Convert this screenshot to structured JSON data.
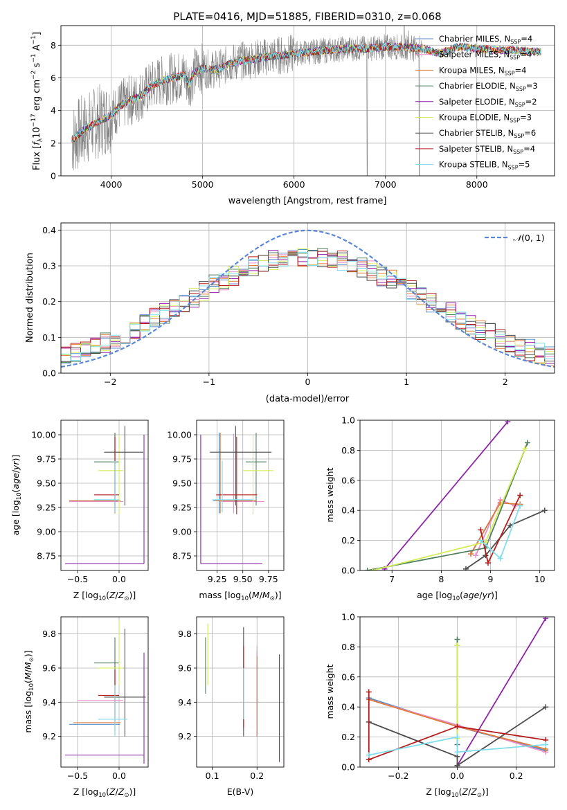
{
  "chart_data": [
    {
      "id": "spectrum",
      "type": "line",
      "title": "PLATE=0416, MJD=51885, FIBERID=0310, z=0.068",
      "xlabel": "wavelength [Angstrom, rest frame]",
      "ylabel": "Flux [f_λ 10^-17 erg cm^-2 s^-1 A^-1]",
      "xlim": [
        3450,
        8850
      ],
      "ylim": [
        0,
        9.2
      ],
      "xticks": [
        4000,
        5000,
        6000,
        7000,
        8000
      ],
      "yticks": [
        0,
        2,
        4,
        6,
        8
      ],
      "legend_position": "upper-right",
      "data_color": "#808080",
      "series": [
        {
          "name": "Chabrier MILES, N_SSP=4",
          "color": "#5b8fc9"
        },
        {
          "name": "Salpeter MILES, N_SSP=4",
          "color": "#e88fc8"
        },
        {
          "name": "Kroupa MILES, N_SSP=4",
          "color": "#e07b39"
        },
        {
          "name": "Chabrier ELODIE, N_SSP=3",
          "color": "#4f7f5f"
        },
        {
          "name": "Salpeter ELODIE, N_SSP=2",
          "color": "#8e24aa"
        },
        {
          "name": "Kroupa ELODIE, N_SSP=3",
          "color": "#d4ee5a"
        },
        {
          "name": "Chabrier STELIB, N_SSP=6",
          "color": "#4d4d4d"
        },
        {
          "name": "Salpeter STELIB, N_SSP=4",
          "color": "#b71c1c"
        },
        {
          "name": "Kroupa STELIB, N_SSP=5",
          "color": "#80deea"
        }
      ],
      "continuum": [
        {
          "x": 3570,
          "y": 2.2
        },
        {
          "x": 3700,
          "y": 2.8
        },
        {
          "x": 3850,
          "y": 3.3
        },
        {
          "x": 4000,
          "y": 3.7
        },
        {
          "x": 4100,
          "y": 4.3
        },
        {
          "x": 4200,
          "y": 4.6
        },
        {
          "x": 4300,
          "y": 4.8
        },
        {
          "x": 4400,
          "y": 5.3
        },
        {
          "x": 4500,
          "y": 5.7
        },
        {
          "x": 4600,
          "y": 5.9
        },
        {
          "x": 4700,
          "y": 6.0
        },
        {
          "x": 4800,
          "y": 6.2
        },
        {
          "x": 4850,
          "y": 5.6
        },
        {
          "x": 4900,
          "y": 6.3
        },
        {
          "x": 5000,
          "y": 6.6
        },
        {
          "x": 5100,
          "y": 6.5
        },
        {
          "x": 5200,
          "y": 6.6
        },
        {
          "x": 5300,
          "y": 6.9
        },
        {
          "x": 5400,
          "y": 7.0
        },
        {
          "x": 5500,
          "y": 7.1
        },
        {
          "x": 5700,
          "y": 7.3
        },
        {
          "x": 5900,
          "y": 7.4
        },
        {
          "x": 6000,
          "y": 7.5
        },
        {
          "x": 6200,
          "y": 7.6
        },
        {
          "x": 6400,
          "y": 7.7
        },
        {
          "x": 6600,
          "y": 7.8
        },
        {
          "x": 6800,
          "y": 7.8
        },
        {
          "x": 7000,
          "y": 7.9
        },
        {
          "x": 7200,
          "y": 7.9
        },
        {
          "x": 7400,
          "y": 7.8
        },
        {
          "x": 7600,
          "y": 7.5
        },
        {
          "x": 7800,
          "y": 7.9
        },
        {
          "x": 8000,
          "y": 7.8
        },
        {
          "x": 8200,
          "y": 7.7
        },
        {
          "x": 8400,
          "y": 7.7
        },
        {
          "x": 8600,
          "y": 7.6
        }
      ]
    },
    {
      "id": "residuals",
      "type": "line",
      "xlabel": "(data-model)/error",
      "ylabel": "Normed distribution",
      "xlim": [
        -2.5,
        2.5
      ],
      "ylim": [
        0,
        0.42
      ],
      "xticks": [
        -2,
        -1,
        0,
        1,
        2
      ],
      "yticks": [
        0.0,
        0.1,
        0.2,
        0.3,
        0.4
      ],
      "legend": [
        {
          "name": "N(0,1)",
          "color": "#5b86d6",
          "style": "dashed"
        }
      ],
      "legend_position": "upper-right",
      "histogram_bin_width": 0.1
    },
    {
      "id": "age_vs_Z",
      "type": "scatter",
      "xlabel": "Z [log10(Z/Z☉)]",
      "ylabel": "age  [log10(age/yr)]",
      "xlim": [
        -0.7,
        0.35
      ],
      "ylim": [
        8.6,
        10.15
      ],
      "xticks": [
        -0.5,
        0.0
      ],
      "yticks": [
        8.75,
        9.0,
        9.25,
        9.5,
        9.75,
        10.0
      ],
      "points": [
        {
          "series": "Chabrier MILES",
          "x": -0.05,
          "y": 9.32,
          "xerr": [
            0.55,
            0.06
          ],
          "yerr": [
            0.13,
            0.7
          ]
        },
        {
          "series": "Salpeter MILES",
          "x": -0.05,
          "y": 9.31,
          "xerr": [
            0.55,
            0.1
          ],
          "yerr": [
            0.12,
            0.7
          ]
        },
        {
          "series": "Kroupa MILES",
          "x": -0.05,
          "y": 9.32,
          "xerr": [
            0.55,
            0.07
          ],
          "yerr": [
            0.13,
            0.7
          ]
        },
        {
          "series": "Chabrier ELODIE",
          "x": -0.05,
          "y": 9.72,
          "xerr": [
            0.25,
            0.05
          ],
          "yerr": [
            0.45,
            0.3
          ]
        },
        {
          "series": "Salpeter ELODIE",
          "x": 0.3,
          "y": 8.67,
          "xerr": [
            0.95,
            0.0
          ],
          "yerr": [
            0.0,
            1.33
          ]
        },
        {
          "series": "Kroupa ELODIE",
          "x": 0.0,
          "y": 9.63,
          "xerr": [
            0.25,
            0.05
          ],
          "yerr": [
            0.45,
            0.37
          ]
        },
        {
          "series": "Chabrier STELIB",
          "x": 0.07,
          "y": 9.82,
          "xerr": [
            0.25,
            0.22
          ],
          "yerr": [
            0.55,
            0.27
          ]
        },
        {
          "series": "Salpeter STELIB",
          "x": -0.05,
          "y": 9.38,
          "xerr": [
            0.25,
            0.05
          ],
          "yerr": [
            0.15,
            0.6
          ]
        },
        {
          "series": "Kroupa STELIB",
          "x": -0.05,
          "y": 9.33,
          "xerr": [
            0.25,
            0.05
          ],
          "yerr": [
            0.13,
            0.4
          ]
        }
      ]
    },
    {
      "id": "age_vs_mass",
      "type": "scatter",
      "xlabel": "mass [log10(M/M☉)]",
      "ylabel": "",
      "xlim": [
        9.05,
        9.9
      ],
      "ylim": [
        8.6,
        10.15
      ],
      "xticks": [
        9.25,
        9.5,
        9.75
      ],
      "yticks": [
        8.75,
        9.0,
        9.25,
        9.5,
        9.75,
        10.0
      ],
      "points": [
        {
          "series": "Chabrier MILES",
          "x": 9.27,
          "y": 9.32,
          "xerr": [
            0.06,
            0.35
          ],
          "yerr": [
            0.13,
            0.7
          ]
        },
        {
          "series": "Salpeter MILES",
          "x": 9.41,
          "y": 9.31,
          "xerr": [
            0.12,
            0.3
          ],
          "yerr": [
            0.12,
            0.7
          ]
        },
        {
          "series": "Kroupa MILES",
          "x": 9.28,
          "y": 9.32,
          "xerr": [
            0.05,
            0.35
          ],
          "yerr": [
            0.13,
            0.7
          ]
        },
        {
          "series": "Chabrier ELODIE",
          "x": 9.63,
          "y": 9.72,
          "xerr": [
            0.1,
            0.1
          ],
          "yerr": [
            0.45,
            0.3
          ]
        },
        {
          "series": "Salpeter ELODIE",
          "x": 9.09,
          "y": 8.67,
          "xerr": [
            0.0,
            0.6
          ],
          "yerr": [
            0.0,
            1.33
          ]
        },
        {
          "series": "Kroupa ELODIE",
          "x": 9.6,
          "y": 9.63,
          "xerr": [
            0.1,
            0.2
          ],
          "yerr": [
            0.45,
            0.37
          ]
        },
        {
          "series": "Chabrier STELIB",
          "x": 9.43,
          "y": 9.82,
          "xerr": [
            0.25,
            0.35
          ],
          "yerr": [
            0.55,
            0.27
          ]
        },
        {
          "series": "Salpeter STELIB",
          "x": 9.44,
          "y": 9.38,
          "xerr": [
            0.2,
            0.2
          ],
          "yerr": [
            0.2,
            0.6
          ]
        },
        {
          "series": "Kroupa STELIB",
          "x": 9.3,
          "y": 9.33,
          "xerr": [
            0.1,
            0.3
          ],
          "yerr": [
            0.13,
            0.4
          ]
        }
      ]
    },
    {
      "id": "weight_vs_age",
      "type": "line",
      "xlabel": "age  [log10(age/yr)]",
      "ylabel": "mass weight",
      "xlim": [
        6.35,
        10.3
      ],
      "ylim": [
        0,
        1.0
      ],
      "xticks": [
        7,
        8,
        9,
        10
      ],
      "yticks": [
        0.0,
        0.2,
        0.4,
        0.6,
        0.8,
        1.0
      ],
      "series": [
        {
          "name": "Chabrier MILES",
          "points": [
            [
              8.6,
              0.11
            ],
            [
              9.2,
              0.45
            ],
            [
              9.6,
              0.44
            ]
          ]
        },
        {
          "name": "Salpeter MILES",
          "points": [
            [
              8.7,
              0.1
            ],
            [
              9.2,
              0.47
            ],
            [
              9.5,
              0.43
            ]
          ]
        },
        {
          "name": "Kroupa MILES",
          "points": [
            [
              8.6,
              0.11
            ],
            [
              9.2,
              0.45
            ],
            [
              9.6,
              0.44
            ]
          ]
        },
        {
          "name": "Chabrier ELODIE",
          "points": [
            [
              6.5,
              0.0
            ],
            [
              8.9,
              0.15
            ],
            [
              9.75,
              0.85
            ]
          ]
        },
        {
          "name": "Salpeter ELODIE",
          "points": [
            [
              6.85,
              0.01
            ],
            [
              9.35,
              0.99
            ]
          ]
        },
        {
          "name": "Kroupa ELODIE",
          "points": [
            [
              6.6,
              0.0
            ],
            [
              8.9,
              0.19
            ],
            [
              9.7,
              0.81
            ]
          ]
        },
        {
          "name": "Chabrier STELIB",
          "points": [
            [
              8.5,
              0.01
            ],
            [
              8.9,
              0.1
            ],
            [
              9.4,
              0.3
            ],
            [
              10.1,
              0.4
            ]
          ]
        },
        {
          "name": "Salpeter STELIB",
          "points": [
            [
              8.8,
              0.27
            ],
            [
              8.95,
              0.05
            ],
            [
              9.6,
              0.5
            ]
          ]
        },
        {
          "name": "Kroupa STELIB",
          "points": [
            [
              8.8,
              0.2
            ],
            [
              9.2,
              0.08
            ],
            [
              9.6,
              0.43
            ]
          ]
        }
      ]
    },
    {
      "id": "mass_vs_Z",
      "type": "scatter",
      "xlabel": "Z [log10(Z/Z☉)]",
      "ylabel": "mass [log10(M/M☉)]",
      "xlim": [
        -0.7,
        0.35
      ],
      "ylim": [
        9.02,
        9.9
      ],
      "xticks": [
        -0.5,
        0.0
      ],
      "yticks": [
        9.2,
        9.4,
        9.6,
        9.8
      ],
      "points": [
        {
          "series": "Chabrier MILES",
          "x": -0.05,
          "y": 9.27,
          "xerr": [
            0.55,
            0.06
          ],
          "yerr": [
            0.06,
            0.35
          ]
        },
        {
          "series": "Salpeter MILES",
          "x": -0.05,
          "y": 9.41,
          "xerr": [
            0.45,
            0.1
          ],
          "yerr": [
            0.12,
            0.3
          ]
        },
        {
          "series": "Kroupa MILES",
          "x": -0.05,
          "y": 9.28,
          "xerr": [
            0.5,
            0.07
          ],
          "yerr": [
            0.05,
            0.35
          ]
        },
        {
          "series": "Chabrier ELODIE",
          "x": -0.05,
          "y": 9.63,
          "xerr": [
            0.25,
            0.05
          ],
          "yerr": [
            0.15,
            0.15
          ]
        },
        {
          "series": "Salpeter ELODIE",
          "x": 0.3,
          "y": 9.09,
          "xerr": [
            0.95,
            0.0
          ],
          "yerr": [
            0.05,
            0.6
          ]
        },
        {
          "series": "Kroupa ELODIE",
          "x": 0.0,
          "y": 9.6,
          "xerr": [
            0.25,
            0.05
          ],
          "yerr": [
            0.1,
            0.28
          ]
        },
        {
          "series": "Chabrier STELIB",
          "x": 0.07,
          "y": 9.43,
          "xerr": [
            0.25,
            0.25
          ],
          "yerr": [
            0.23,
            0.4
          ]
        },
        {
          "series": "Salpeter STELIB",
          "x": -0.05,
          "y": 9.44,
          "xerr": [
            0.2,
            0.05
          ],
          "yerr": [
            0.15,
            0.15
          ]
        },
        {
          "series": "Kroupa STELIB",
          "x": -0.05,
          "y": 9.3,
          "xerr": [
            0.2,
            0.15
          ],
          "yerr": [
            0.1,
            0.2
          ]
        }
      ]
    },
    {
      "id": "mass_vs_EBV",
      "type": "scatter",
      "xlabel": "E(B-V)",
      "ylabel": "",
      "xlim": [
        0.065,
        0.26
      ],
      "ylim": [
        9.02,
        9.9
      ],
      "xticks": [
        0.1,
        0.2
      ],
      "yticks": [
        9.2,
        9.4,
        9.6,
        9.8
      ],
      "points": [
        {
          "series": "Chabrier MILES",
          "x": 0.2,
          "y": 9.4,
          "yerr": [
            0.2,
            0.3
          ]
        },
        {
          "series": "Salpeter MILES",
          "x": 0.2,
          "y": 9.5,
          "yerr": [
            0.3,
            0.23
          ]
        },
        {
          "series": "Kroupa MILES",
          "x": 0.2,
          "y": 9.45,
          "yerr": [
            0.25,
            0.22
          ]
        },
        {
          "series": "Chabrier ELODIE",
          "x": 0.085,
          "y": 9.6,
          "yerr": [
            0.15,
            0.18
          ]
        },
        {
          "series": "Salpeter ELODIE",
          "x": 0.25,
          "y": 9.3,
          "yerr": [
            0.25,
            0.38
          ]
        },
        {
          "series": "Kroupa ELODIE",
          "x": 0.09,
          "y": 9.7,
          "yerr": [
            0.2,
            0.16
          ]
        },
        {
          "series": "Chabrier STELIB",
          "x": 0.17,
          "y": 9.5,
          "yerr": [
            0.3,
            0.34
          ]
        },
        {
          "series": "Salpeter STELIB",
          "x": 0.17,
          "y": 9.5,
          "yerr": [
            0.25,
            0.23
          ]
        },
        {
          "series": "Kroupa STELIB",
          "x": 0.17,
          "y": 9.4,
          "yerr": [
            0.1,
            0.2
          ]
        }
      ]
    },
    {
      "id": "weight_vs_Z",
      "type": "line",
      "xlabel": "Z [log10(Z/Z☉)]",
      "ylabel": "mass weight",
      "xlim": [
        -0.33,
        0.33
      ],
      "ylim": [
        0,
        1.0
      ],
      "xticks": [
        -0.2,
        0.0,
        0.2
      ],
      "yticks": [
        0.0,
        0.2,
        0.4,
        0.6,
        0.8,
        1.0
      ],
      "series": [
        {
          "name": "Chabrier MILES",
          "points": [
            [
              -0.3,
              0.46
            ],
            [
              0.0,
              0.27
            ],
            [
              0.3,
              0.11
            ]
          ]
        },
        {
          "name": "Salpeter MILES",
          "points": [
            [
              -0.3,
              0.45
            ],
            [
              0.0,
              0.28
            ],
            [
              0.3,
              0.1
            ]
          ]
        },
        {
          "name": "Kroupa MILES",
          "points": [
            [
              -0.3,
              0.45
            ],
            [
              0.0,
              0.27
            ],
            [
              0.3,
              0.12
            ]
          ]
        },
        {
          "name": "Chabrier ELODIE",
          "points": [
            [
              0.0,
              0.85
            ],
            [
              0.0,
              0.15
            ]
          ]
        },
        {
          "name": "Salpeter ELODIE",
          "points": [
            [
              0.0,
              0.01
            ],
            [
              0.3,
              0.99
            ]
          ]
        },
        {
          "name": "Kroupa ELODIE",
          "points": [
            [
              0.0,
              0.81
            ],
            [
              0.0,
              0.19
            ]
          ]
        },
        {
          "name": "Chabrier STELIB",
          "points": [
            [
              -0.3,
              0.3
            ],
            [
              0.0,
              0.07
            ],
            [
              0.0,
              0.01
            ],
            [
              0.3,
              0.4
            ]
          ]
        },
        {
          "name": "Salpeter STELIB",
          "points": [
            [
              -0.3,
              0.5
            ],
            [
              -0.3,
              0.05
            ],
            [
              0.0,
              0.27
            ],
            [
              0.3,
              0.18
            ]
          ]
        },
        {
          "name": "Kroupa STELIB",
          "points": [
            [
              -0.3,
              0.08
            ],
            [
              0.0,
              0.2
            ],
            [
              0.0,
              0.1
            ],
            [
              0.3,
              0.15
            ]
          ]
        }
      ]
    }
  ]
}
